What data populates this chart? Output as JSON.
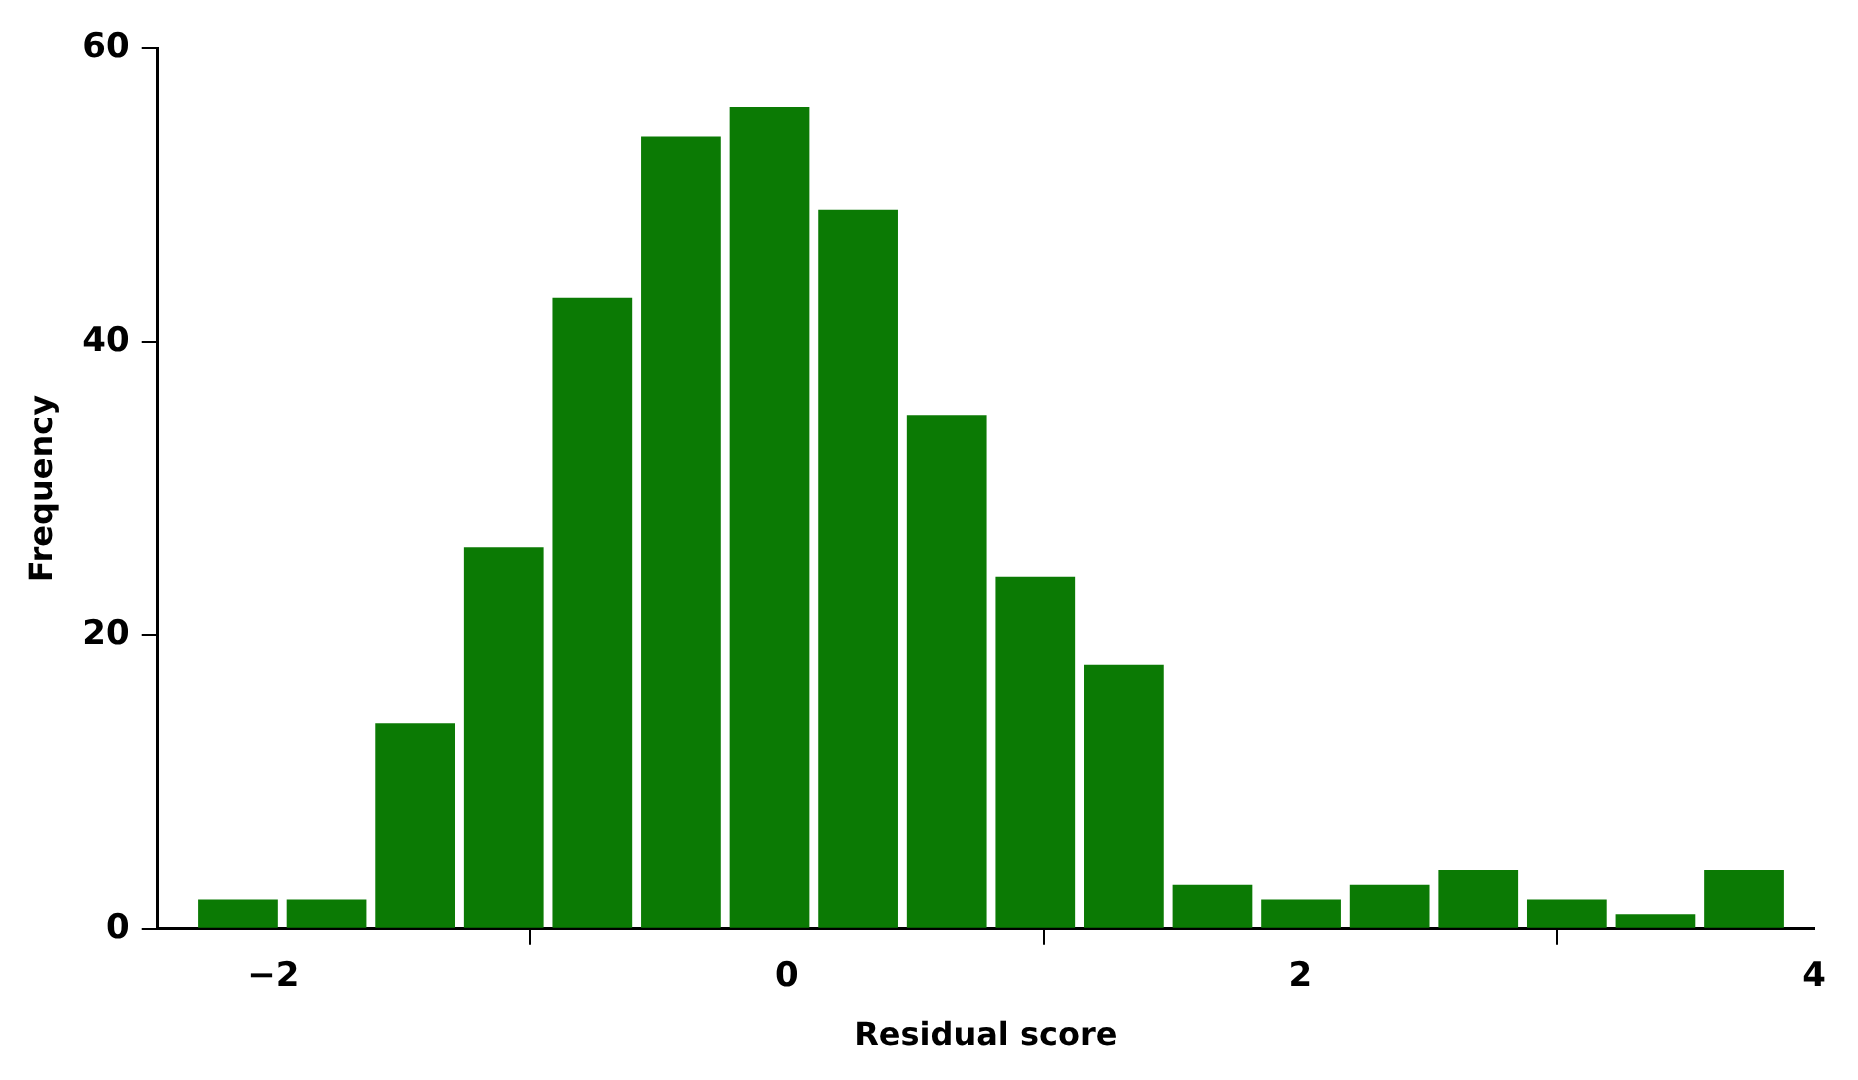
{
  "chart_data": {
    "type": "histogram",
    "xlabel": "Residual score",
    "ylabel": "Frequency",
    "bins": [
      -2.31,
      -1.965,
      -1.62,
      -1.275,
      -0.93,
      -0.585,
      -0.24,
      0.105,
      0.45,
      0.795,
      1.14,
      1.485,
      1.83,
      2.175,
      2.52,
      2.865,
      3.21,
      3.555,
      3.9
    ],
    "values": [
      2,
      2,
      14,
      26,
      43,
      54,
      56,
      49,
      35,
      24,
      18,
      3,
      2,
      3,
      4,
      2,
      1,
      4
    ],
    "color": "#0b7a04",
    "xlim": [
      -2.45,
      4
    ],
    "xticks": [
      -2,
      0,
      2,
      4
    ],
    "ylim": [
      0,
      60
    ],
    "yticks": [
      0,
      20,
      40,
      60
    ],
    "grid": false,
    "legend": false
  }
}
